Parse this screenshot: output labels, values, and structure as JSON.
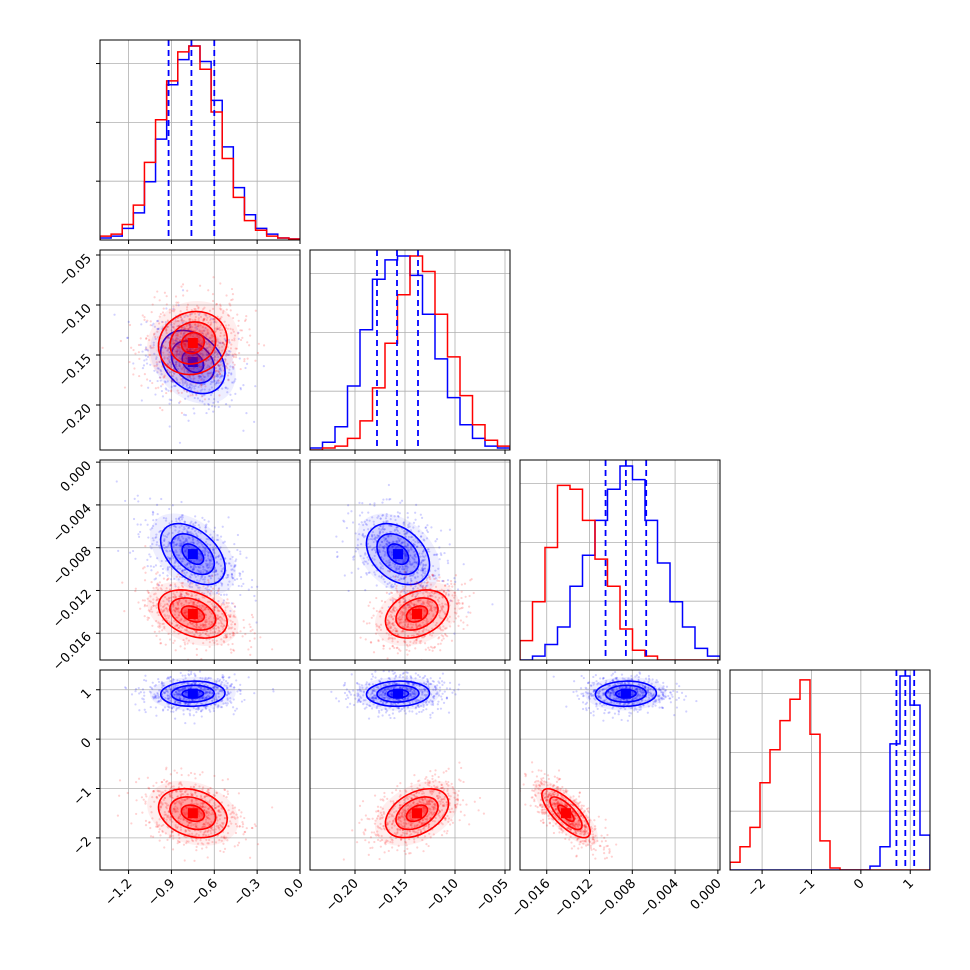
{
  "chart_data": {
    "type": "corner",
    "parameters": 4,
    "colors": {
      "blue": "#0000ff",
      "red": "#ff0000",
      "grid": "#b0b0b0",
      "frame": "#000000"
    },
    "grid": true,
    "ranges": [
      [
        -1.4,
        0.0
      ],
      [
        -0.245,
        -0.045
      ],
      [
        -0.0185,
        0.0002
      ],
      [
        -2.65,
        1.4
      ]
    ],
    "x_ticks": [
      [
        "-1.2",
        "-0.9",
        "-0.6",
        "-0.3",
        "0.0"
      ],
      [
        "-0.20",
        "-0.15",
        "-0.10",
        "-0.05"
      ],
      [
        "-0.016",
        "-0.012",
        "-0.008",
        "-0.004",
        "0.000"
      ],
      [
        "-2",
        "-1",
        "0",
        "1"
      ]
    ],
    "y_ticks": [
      [],
      [
        "-0.05",
        "-0.10",
        "-0.15",
        "-0.20"
      ],
      [
        "0.000",
        "-0.004",
        "-0.008",
        "-0.012",
        "-0.016"
      ],
      [
        "1",
        "0",
        "-1",
        "-2"
      ]
    ],
    "x_tick_values": [
      [
        -1.2,
        -0.9,
        -0.6,
        -0.3,
        0.0
      ],
      [
        -0.2,
        -0.15,
        -0.1,
        -0.05
      ],
      [
        -0.016,
        -0.012,
        -0.008,
        -0.004,
        0.0
      ],
      [
        -2,
        -1,
        0,
        1
      ]
    ],
    "y_tick_values": [
      [],
      [
        -0.05,
        -0.1,
        -0.15,
        -0.2
      ],
      [
        0.0,
        -0.004,
        -0.008,
        -0.012,
        -0.016
      ],
      [
        1,
        0,
        -1,
        -2
      ]
    ],
    "quantiles_blue": [
      [
        -0.92,
        -0.76,
        -0.6
      ],
      [
        -0.178,
        -0.158,
        -0.137
      ],
      [
        -0.0105,
        -0.0086,
        -0.0067
      ],
      [
        0.72,
        0.9,
        1.08
      ]
    ],
    "series": [
      {
        "color": "blue",
        "mean": [
          -0.75,
          -0.157,
          -0.0086,
          0.92
        ],
        "sd": [
          0.15,
          0.021,
          0.0019,
          0.17
        ],
        "corr": [
          [
            1,
            -0.3,
            -0.45,
            0.05
          ],
          [
            -0.3,
            1,
            -0.35,
            0.05
          ],
          [
            -0.45,
            -0.35,
            1,
            0.05
          ],
          [
            0.05,
            0.05,
            0.05,
            1
          ]
        ],
        "hist_1d": [
          [
            0.01,
            0.02,
            0.06,
            0.14,
            0.3,
            0.52,
            0.8,
            0.93,
            1.0,
            0.92,
            0.72,
            0.48,
            0.27,
            0.13,
            0.06,
            0.03,
            0.01,
            0.005
          ],
          [
            0.01,
            0.04,
            0.12,
            0.33,
            0.62,
            0.88,
            0.98,
            1.0,
            0.9,
            0.7,
            0.47,
            0.27,
            0.13,
            0.06,
            0.02,
            0.01
          ],
          [
            0.0,
            0.02,
            0.08,
            0.17,
            0.38,
            0.54,
            0.72,
            0.88,
            1.0,
            0.93,
            0.72,
            0.5,
            0.3,
            0.17,
            0.06,
            0.02
          ],
          [
            0.0,
            0.0,
            0.0,
            0.0,
            0.0,
            0.0,
            0.0,
            0.0,
            0.0,
            0.0,
            0.0,
            0.0,
            0.0,
            0.0,
            0.02,
            0.12,
            0.65,
            1.0,
            0.85,
            0.18
          ]
        ]
      },
      {
        "color": "red",
        "mean": [
          -0.75,
          -0.138,
          -0.0142,
          -1.5
        ],
        "sd": [
          0.16,
          0.021,
          0.0015,
          0.33
        ],
        "corr": [
          [
            1,
            0.1,
            -0.35,
            -0.25
          ],
          [
            0.1,
            1,
            0.3,
            0.4
          ],
          [
            -0.35,
            0.3,
            1,
            -0.75
          ],
          [
            -0.25,
            0.4,
            -0.75,
            1
          ]
        ],
        "hist_1d": [
          [
            0.02,
            0.03,
            0.08,
            0.18,
            0.4,
            0.62,
            0.82,
            0.97,
            1.0,
            0.88,
            0.66,
            0.42,
            0.22,
            0.1,
            0.05,
            0.02,
            0.01,
            0.005
          ],
          [
            0.0,
            0.01,
            0.02,
            0.06,
            0.15,
            0.32,
            0.55,
            0.8,
            1.0,
            0.92,
            0.7,
            0.48,
            0.28,
            0.13,
            0.05,
            0.02
          ],
          [
            0.1,
            0.3,
            0.58,
            0.9,
            0.88,
            0.72,
            0.52,
            0.38,
            0.16,
            0.05,
            0.02,
            0.0,
            0.0,
            0.0,
            0.0,
            0.0
          ],
          [
            0.04,
            0.12,
            0.22,
            0.45,
            0.62,
            0.77,
            0.88,
            0.98,
            0.7,
            0.15,
            0.01,
            0.0,
            0.0,
            0.0,
            0.0,
            0.0,
            0.0,
            0.0,
            0.0,
            0.0
          ]
        ]
      }
    ]
  }
}
